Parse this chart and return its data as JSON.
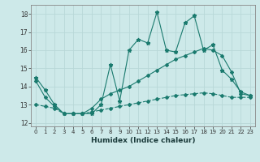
{
  "xlabel": "Humidex (Indice chaleur)",
  "xlim": [
    -0.5,
    23.5
  ],
  "ylim": [
    11.8,
    18.5
  ],
  "xticks": [
    0,
    1,
    2,
    3,
    4,
    5,
    6,
    7,
    8,
    9,
    10,
    11,
    12,
    13,
    14,
    15,
    16,
    17,
    18,
    19,
    20,
    21,
    22,
    23
  ],
  "yticks": [
    12,
    13,
    14,
    15,
    16,
    17,
    18
  ],
  "bg_color": "#cde9e9",
  "line_color": "#1a7a6e",
  "grid_color": "#b8d8d8",
  "line1_x": [
    0,
    1,
    2,
    3,
    4,
    5,
    6,
    7,
    8,
    9,
    10,
    11,
    12,
    13,
    14,
    15,
    16,
    17,
    18,
    19,
    20,
    21,
    22,
    23
  ],
  "line1_y": [
    14.5,
    13.8,
    13.0,
    12.5,
    12.5,
    12.5,
    12.5,
    13.0,
    15.2,
    13.2,
    16.0,
    16.6,
    16.4,
    18.1,
    16.0,
    15.9,
    17.5,
    17.9,
    16.0,
    16.3,
    14.9,
    14.4,
    13.7,
    13.5
  ],
  "line2_x": [
    0,
    1,
    2,
    3,
    4,
    5,
    6,
    7,
    8,
    9,
    10,
    11,
    12,
    13,
    14,
    15,
    16,
    17,
    18,
    19,
    20,
    21,
    22,
    23
  ],
  "line2_y": [
    14.3,
    13.4,
    12.9,
    12.5,
    12.5,
    12.5,
    12.8,
    13.3,
    13.6,
    13.8,
    14.0,
    14.3,
    14.6,
    14.9,
    15.2,
    15.5,
    15.7,
    15.9,
    16.1,
    16.0,
    15.7,
    14.8,
    13.6,
    13.5
  ],
  "line3_x": [
    0,
    1,
    2,
    3,
    4,
    5,
    6,
    7,
    8,
    9,
    10,
    11,
    12,
    13,
    14,
    15,
    16,
    17,
    18,
    19,
    20,
    21,
    22,
    23
  ],
  "line3_y": [
    13.0,
    12.9,
    12.8,
    12.5,
    12.5,
    12.5,
    12.6,
    12.7,
    12.8,
    12.9,
    13.0,
    13.1,
    13.2,
    13.3,
    13.4,
    13.5,
    13.55,
    13.6,
    13.65,
    13.6,
    13.5,
    13.4,
    13.4,
    13.4
  ]
}
